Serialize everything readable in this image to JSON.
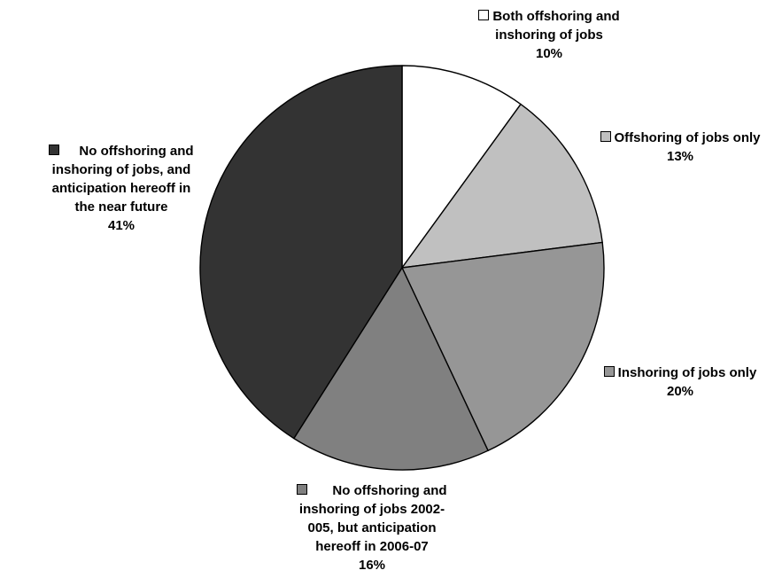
{
  "chart_data": {
    "type": "pie",
    "title": "",
    "slices": [
      {
        "label_lines": [
          "Both offshoring and",
          "inshoring of jobs"
        ],
        "label": "Both offshoring and inshoring of jobs",
        "value": 10,
        "value_label": "10%",
        "color": "#ffffff"
      },
      {
        "label_lines": [
          "Offshoring of jobs only"
        ],
        "label": "Offshoring of jobs only",
        "value": 13,
        "value_label": "13%",
        "color": "#c0c0c0"
      },
      {
        "label_lines": [
          "Inshoring of jobs only"
        ],
        "label": "Inshoring of jobs only",
        "value": 20,
        "value_label": "20%",
        "color": "#969696"
      },
      {
        "label_lines": [
          "No offshoring and",
          "inshoring of jobs 2002-",
          "005, but anticipation",
          "hereoff in 2006-07"
        ],
        "label": "No offshoring and inshoring of jobs 2002-005, but anticipation hereoff in 2006-07",
        "value": 16,
        "value_label": "16%",
        "color": "#808080"
      },
      {
        "label_lines": [
          "No offshoring and",
          "inshoring of jobs, and",
          "anticipation hereoff in",
          "the near future"
        ],
        "label": "No offshoring and inshoring of jobs, and anticipation hereoff in the near future",
        "value": 41,
        "value_label": "41%",
        "color": "#333333"
      }
    ],
    "start_angle_deg": 0,
    "direction": "clockwise",
    "legend": "labels-outside",
    "outline_color": "#000000"
  }
}
